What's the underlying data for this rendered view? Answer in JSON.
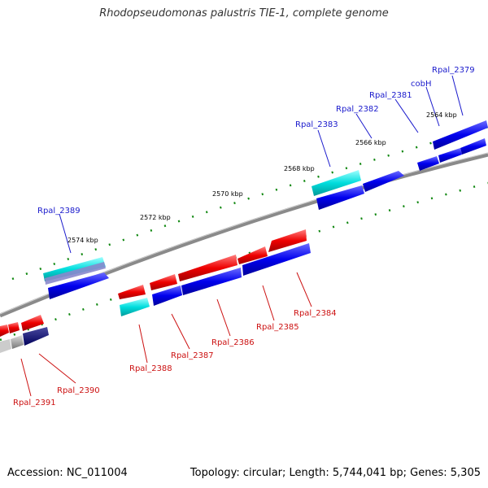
{
  "title": "Rhodopseudomonas palustris TIE-1, complete genome",
  "footer": {
    "accession": "Accession: NC_011004",
    "topology": "Topology: circular; Length: 5,744,041 bp; Genes: 5,305"
  },
  "colors": {
    "top_label": "#1a1acc",
    "bottom_label": "#cc1111",
    "forward_gene": "#0000ee",
    "reverse_gene": "#ee0000",
    "rna_gene": "#00cccc",
    "backbone": "#888888",
    "ticks": "#118811"
  },
  "scale_labels": [
    "2564 kbp",
    "2566 kbp",
    "2568 kbp",
    "2570 kbp",
    "2572 kbp",
    "2574 kbp"
  ],
  "top_gene_labels": [
    "Rpal_2379",
    "cobH",
    "Rpal_2381",
    "Rpal_2382",
    "Rpal_2383",
    "Rpal_2389"
  ],
  "bottom_gene_labels": [
    "Rpal_2384",
    "Rpal_2385",
    "Rpal_2386",
    "Rpal_2387",
    "Rpal_2388",
    "Rpal_2390",
    "Rpal_2391"
  ]
}
